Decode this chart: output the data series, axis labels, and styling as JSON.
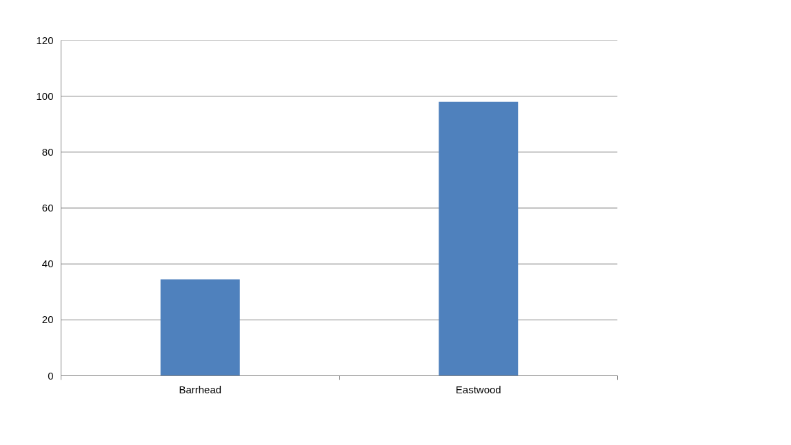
{
  "chart_data": {
    "type": "bar",
    "categories": [
      "Barrhead",
      "Eastwood"
    ],
    "values": [
      34.5,
      98
    ],
    "color": "#4f81bd",
    "ylim": [
      0,
      120
    ],
    "yticks": [
      0,
      20,
      40,
      60,
      80,
      100,
      120
    ],
    "grid": "y"
  }
}
